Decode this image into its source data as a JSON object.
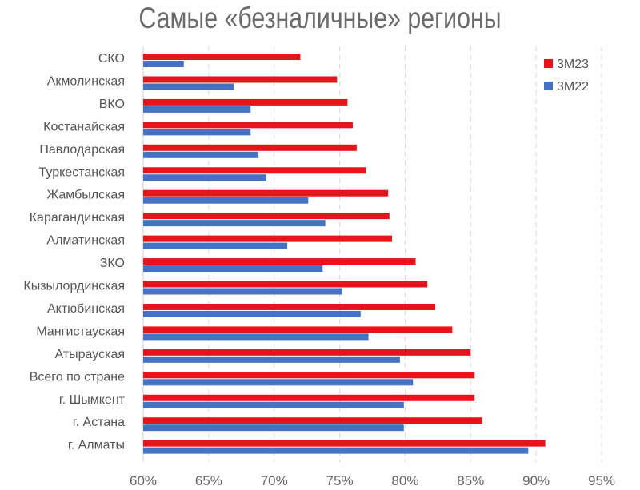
{
  "chart_data": {
    "type": "bar",
    "orientation": "horizontal",
    "title": "Самые «безналичные» регионы",
    "categories": [
      "СКО",
      "Акмолинская",
      "ВКО",
      "Костанайская",
      "Павлодарская",
      "Туркестанская",
      "Жамбылская",
      "Карагандинская",
      "Алматинская",
      "ЗКО",
      "Кызылординская",
      "Актюбинская",
      "Мангистауская",
      "Атырауская",
      "Всего по стране",
      "г. Шымкент",
      "г. Астана",
      "г. Алматы"
    ],
    "series": [
      {
        "name": "3М23",
        "color": "#e8141b",
        "values": [
          72.0,
          74.8,
          75.6,
          76.0,
          76.3,
          77.0,
          78.7,
          78.8,
          79.0,
          80.8,
          81.7,
          82.3,
          83.6,
          85.0,
          85.3,
          85.3,
          85.9,
          90.7
        ]
      },
      {
        "name": "3М22",
        "color": "#4472c4",
        "values": [
          63.1,
          66.9,
          68.2,
          68.2,
          68.8,
          69.4,
          72.6,
          73.9,
          71.0,
          73.7,
          75.2,
          76.6,
          77.2,
          79.6,
          80.6,
          79.9,
          79.9,
          89.4
        ]
      }
    ],
    "xlim": [
      60,
      95
    ],
    "xticks": [
      60,
      65,
      70,
      75,
      80,
      85,
      90,
      95
    ],
    "xtick_labels": [
      "60%",
      "65%",
      "70%",
      "75%",
      "80%",
      "85%",
      "90%",
      "95%"
    ],
    "grid": "vertical dashed",
    "legend": "top-right",
    "xlabel": "",
    "ylabel": ""
  }
}
